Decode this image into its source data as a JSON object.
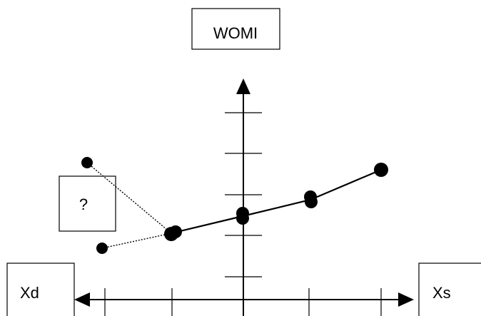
{
  "diagram": {
    "title_box": "WOMI",
    "question_box": "?",
    "left_axis_label": "Xd",
    "right_axis_label": "Xs"
  },
  "colors": {
    "ink": "#000000",
    "background": "#ffffff"
  }
}
